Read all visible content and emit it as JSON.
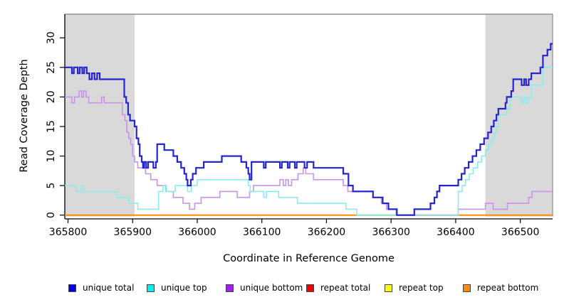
{
  "figure": {
    "background": "#ffffff"
  },
  "chart_data": {
    "type": "line",
    "title": "",
    "xlabel": "Coordinate in Reference Genome",
    "ylabel": "Read Coverage Depth",
    "xlim": [
      365795,
      366550
    ],
    "ylim": [
      0,
      34
    ],
    "x_ticks": [
      "365800",
      "365900",
      "366000",
      "366100",
      "366200",
      "366300",
      "366400",
      "366500"
    ],
    "y_ticks": [
      "0",
      "5",
      "10",
      "15",
      "20",
      "25",
      "30"
    ],
    "grid": false,
    "legend_position": "bottom",
    "colors": {
      "shade": "#d9d9d9",
      "border": "#8c8c8c",
      "axis": "#000000"
    },
    "shaded_regions": [
      {
        "from": 365795,
        "to": 365903
      },
      {
        "from": 366446,
        "to": 366550
      }
    ],
    "baseline_overlays": [
      {
        "from": 366246,
        "to": 366310,
        "color": "#90d898"
      },
      {
        "from": 366336,
        "to": 366404,
        "color": "#cf7f9f"
      }
    ],
    "series": [
      {
        "name": "unique total",
        "legend_color": "#0000ee",
        "line_color": "#2424d0",
        "width": 2.2,
        "steps": [
          [
            365795,
            25
          ],
          [
            365806,
            24
          ],
          [
            365809,
            25
          ],
          [
            365815,
            24
          ],
          [
            365818,
            25
          ],
          [
            365822,
            24
          ],
          [
            365825,
            25
          ],
          [
            365829,
            24
          ],
          [
            365833,
            23
          ],
          [
            365837,
            24
          ],
          [
            365841,
            23
          ],
          [
            365845,
            24
          ],
          [
            365849,
            23
          ],
          [
            365887,
            20
          ],
          [
            365890,
            19
          ],
          [
            365893,
            17
          ],
          [
            365896,
            16
          ],
          [
            365903,
            15
          ],
          [
            365906,
            13
          ],
          [
            365909,
            12
          ],
          [
            365911,
            10
          ],
          [
            365914,
            9
          ],
          [
            365916,
            8
          ],
          [
            365918,
            9
          ],
          [
            365921,
            8
          ],
          [
            365924,
            9
          ],
          [
            365932,
            8
          ],
          [
            365936,
            9
          ],
          [
            365938,
            12
          ],
          [
            365949,
            11
          ],
          [
            365963,
            10
          ],
          [
            365969,
            9
          ],
          [
            365975,
            8
          ],
          [
            365980,
            7
          ],
          [
            365983,
            6
          ],
          [
            365985,
            5
          ],
          [
            365990,
            6
          ],
          [
            365993,
            7
          ],
          [
            365998,
            8
          ],
          [
            366010,
            9
          ],
          [
            366038,
            10
          ],
          [
            366068,
            9
          ],
          [
            366076,
            8
          ],
          [
            366079,
            7
          ],
          [
            366081,
            6
          ],
          [
            366084,
            9
          ],
          [
            366103,
            8
          ],
          [
            366106,
            9
          ],
          [
            366128,
            8
          ],
          [
            366131,
            9
          ],
          [
            366140,
            8
          ],
          [
            366143,
            9
          ],
          [
            366151,
            8
          ],
          [
            366154,
            9
          ],
          [
            366166,
            8
          ],
          [
            366170,
            9
          ],
          [
            366180,
            8
          ],
          [
            366226,
            7
          ],
          [
            366234,
            5
          ],
          [
            366241,
            4
          ],
          [
            366272,
            3
          ],
          [
            366287,
            2
          ],
          [
            366296,
            1
          ],
          [
            366309,
            0
          ],
          [
            366336,
            1
          ],
          [
            366361,
            2
          ],
          [
            366367,
            3
          ],
          [
            366371,
            4
          ],
          [
            366375,
            5
          ],
          [
            366404,
            6
          ],
          [
            366409,
            7
          ],
          [
            366414,
            8
          ],
          [
            366420,
            9
          ],
          [
            366426,
            10
          ],
          [
            366432,
            11
          ],
          [
            366438,
            12
          ],
          [
            366444,
            13
          ],
          [
            366450,
            14
          ],
          [
            366455,
            15
          ],
          [
            366459,
            16
          ],
          [
            366463,
            17
          ],
          [
            366466,
            18
          ],
          [
            366477,
            19
          ],
          [
            366479,
            20
          ],
          [
            366486,
            21
          ],
          [
            366489,
            23
          ],
          [
            366502,
            22
          ],
          [
            366506,
            23
          ],
          [
            366509,
            22
          ],
          [
            366513,
            23
          ],
          [
            366517,
            24
          ],
          [
            366531,
            25
          ],
          [
            366535,
            27
          ],
          [
            366542,
            28
          ],
          [
            366547,
            29
          ]
        ]
      },
      {
        "name": "unique top",
        "legend_color": "#00eeee",
        "line_color": "#8aeded",
        "width": 1.6,
        "steps": [
          [
            365795,
            5
          ],
          [
            365813,
            4
          ],
          [
            365820,
            5
          ],
          [
            365824,
            4
          ],
          [
            365876,
            3
          ],
          [
            365894,
            2
          ],
          [
            365908,
            1
          ],
          [
            365940,
            4
          ],
          [
            365947,
            5
          ],
          [
            365951,
            4
          ],
          [
            365966,
            5
          ],
          [
            365985,
            4
          ],
          [
            365991,
            5
          ],
          [
            366000,
            6
          ],
          [
            366079,
            5
          ],
          [
            366082,
            4
          ],
          [
            366103,
            3
          ],
          [
            366107,
            4
          ],
          [
            366126,
            3
          ],
          [
            366155,
            2
          ],
          [
            366230,
            1
          ],
          [
            366247,
            0
          ],
          [
            366404,
            4
          ],
          [
            366410,
            5
          ],
          [
            366415,
            6
          ],
          [
            366421,
            7
          ],
          [
            366427,
            8
          ],
          [
            366434,
            9
          ],
          [
            366440,
            10
          ],
          [
            366446,
            11
          ],
          [
            366451,
            12
          ],
          [
            366456,
            13
          ],
          [
            366460,
            14
          ],
          [
            366463,
            15
          ],
          [
            366466,
            17
          ],
          [
            366479,
            18
          ],
          [
            366484,
            20
          ],
          [
            366502,
            19
          ],
          [
            366506,
            20
          ],
          [
            366509,
            19
          ],
          [
            366513,
            20
          ],
          [
            366517,
            22
          ],
          [
            366535,
            25
          ]
        ]
      },
      {
        "name": "unique bottom",
        "legend_color": "#a020f0",
        "line_color": "#c893e9",
        "width": 1.6,
        "steps": [
          [
            365795,
            20
          ],
          [
            365806,
            19
          ],
          [
            365810,
            20
          ],
          [
            365817,
            21
          ],
          [
            365821,
            20
          ],
          [
            365824,
            21
          ],
          [
            365828,
            20
          ],
          [
            365832,
            19
          ],
          [
            365852,
            20
          ],
          [
            365856,
            19
          ],
          [
            365884,
            17
          ],
          [
            365888,
            16
          ],
          [
            365891,
            14
          ],
          [
            365894,
            13
          ],
          [
            365897,
            12
          ],
          [
            365900,
            10
          ],
          [
            365903,
            9
          ],
          [
            365908,
            8
          ],
          [
            365920,
            7
          ],
          [
            365928,
            6
          ],
          [
            365938,
            5
          ],
          [
            365952,
            4
          ],
          [
            365963,
            3
          ],
          [
            365978,
            2
          ],
          [
            365988,
            1
          ],
          [
            365996,
            2
          ],
          [
            366006,
            3
          ],
          [
            366035,
            4
          ],
          [
            366062,
            3
          ],
          [
            366081,
            4
          ],
          [
            366087,
            5
          ],
          [
            366128,
            6
          ],
          [
            366133,
            5
          ],
          [
            366137,
            6
          ],
          [
            366141,
            5
          ],
          [
            366146,
            6
          ],
          [
            366156,
            7
          ],
          [
            366164,
            8
          ],
          [
            366168,
            7
          ],
          [
            366180,
            6
          ],
          [
            366226,
            5
          ],
          [
            366233,
            4
          ],
          [
            366245,
            4
          ],
          [
            366272,
            3
          ],
          [
            366285,
            2
          ],
          [
            366293,
            1
          ],
          [
            366308,
            0
          ],
          [
            366404,
            1
          ],
          [
            366446,
            2
          ],
          [
            366458,
            1
          ],
          [
            366480,
            2
          ],
          [
            366513,
            3
          ],
          [
            366518,
            4
          ]
        ]
      },
      {
        "name": "repeat total",
        "legend_color": "#ee0000",
        "line_color": "#d23a3a",
        "width": 1.4,
        "steps": [
          [
            365795,
            0
          ]
        ]
      },
      {
        "name": "repeat top",
        "legend_color": "#ffff00",
        "line_color": "#ffee33",
        "width": 1.4,
        "steps": [
          [
            365795,
            0
          ]
        ]
      },
      {
        "name": "repeat bottom",
        "legend_color": "#ff8c00",
        "line_color": "#ff8c00",
        "width": 2,
        "steps": [
          [
            365795,
            0
          ]
        ]
      }
    ]
  }
}
